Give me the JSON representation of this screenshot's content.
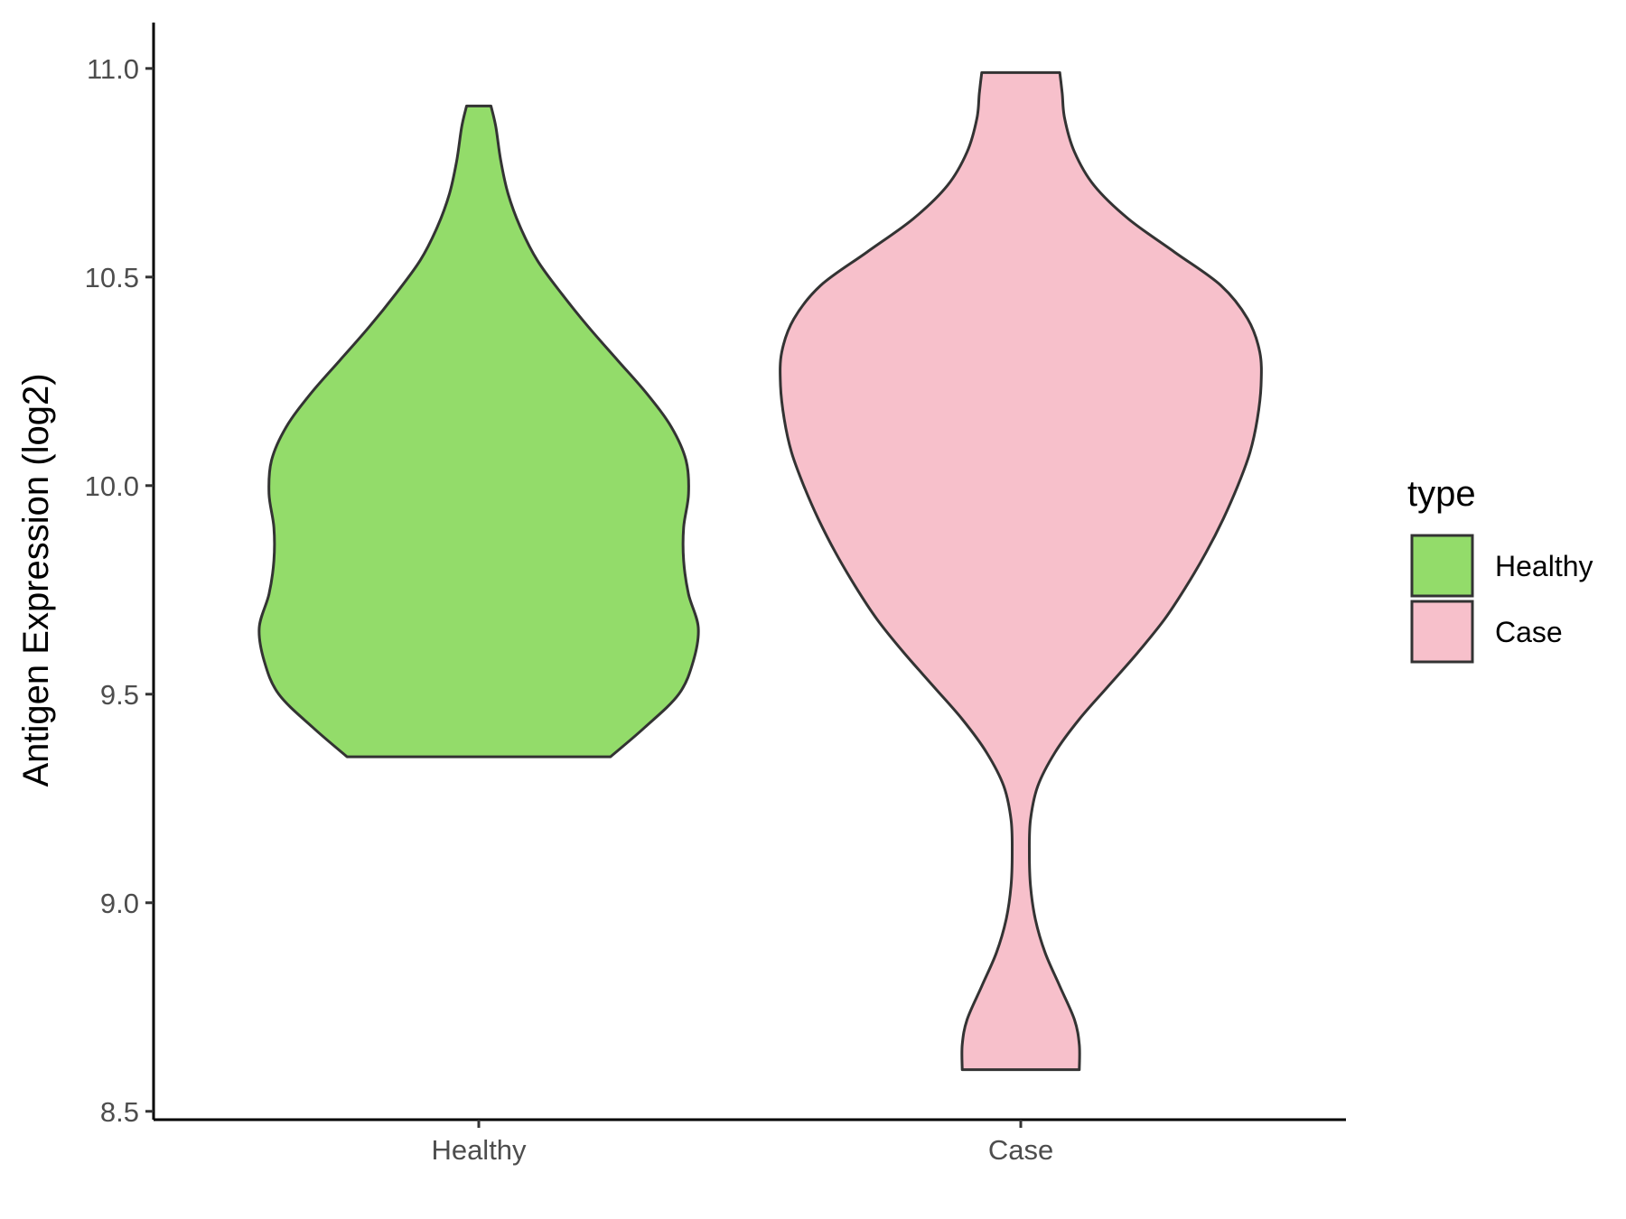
{
  "chart_data": {
    "type": "violin",
    "ylabel": "Antigen Expression (log2)",
    "xlabel": "",
    "ylim": [
      8.48,
      11.11
    ],
    "yticks": [
      8.5,
      9.0,
      9.5,
      10.0,
      10.5,
      11.0
    ],
    "ytick_labels": [
      "8.5",
      "9.0",
      "9.5",
      "10.0",
      "10.5",
      "11.0"
    ],
    "categories": [
      "Healthy",
      "Case"
    ],
    "grid": false,
    "legend": {
      "title": "type",
      "placement": "right",
      "entries": [
        "Healthy",
        "Case"
      ]
    },
    "colors": {
      "Healthy": "#93dc6a",
      "Case": "#f7c0cb",
      "outline": "#333333",
      "axis": "#000000"
    },
    "series": [
      {
        "category": "Healthy",
        "min": 9.35,
        "max": 10.91,
        "density_profile": [
          [
            9.35,
            0.54
          ],
          [
            9.42,
            0.68
          ],
          [
            9.5,
            0.82
          ],
          [
            9.58,
            0.88
          ],
          [
            9.66,
            0.9
          ],
          [
            9.74,
            0.86
          ],
          [
            9.82,
            0.84
          ],
          [
            9.9,
            0.84
          ],
          [
            9.98,
            0.86
          ],
          [
            10.06,
            0.85
          ],
          [
            10.14,
            0.79
          ],
          [
            10.22,
            0.69
          ],
          [
            10.3,
            0.57
          ],
          [
            10.38,
            0.45
          ],
          [
            10.46,
            0.34
          ],
          [
            10.54,
            0.24
          ],
          [
            10.62,
            0.17
          ],
          [
            10.7,
            0.12
          ],
          [
            10.78,
            0.09
          ],
          [
            10.86,
            0.07
          ],
          [
            10.91,
            0.05
          ]
        ]
      },
      {
        "category": "Case",
        "min": 8.6,
        "max": 10.99,
        "density_profile": [
          [
            8.6,
            0.24
          ],
          [
            8.66,
            0.24
          ],
          [
            8.72,
            0.22
          ],
          [
            8.8,
            0.16
          ],
          [
            8.88,
            0.1
          ],
          [
            8.96,
            0.06
          ],
          [
            9.04,
            0.04
          ],
          [
            9.12,
            0.035
          ],
          [
            9.2,
            0.04
          ],
          [
            9.28,
            0.07
          ],
          [
            9.36,
            0.14
          ],
          [
            9.44,
            0.24
          ],
          [
            9.52,
            0.36
          ],
          [
            9.6,
            0.48
          ],
          [
            9.68,
            0.59
          ],
          [
            9.76,
            0.68
          ],
          [
            9.84,
            0.76
          ],
          [
            9.92,
            0.83
          ],
          [
            10.0,
            0.89
          ],
          [
            10.08,
            0.94
          ],
          [
            10.16,
            0.97
          ],
          [
            10.24,
            0.985
          ],
          [
            10.32,
            0.98
          ],
          [
            10.4,
            0.93
          ],
          [
            10.48,
            0.82
          ],
          [
            10.56,
            0.63
          ],
          [
            10.64,
            0.44
          ],
          [
            10.72,
            0.3
          ],
          [
            10.8,
            0.22
          ],
          [
            10.88,
            0.18
          ],
          [
            10.94,
            0.17
          ],
          [
            10.99,
            0.16
          ]
        ]
      }
    ]
  }
}
